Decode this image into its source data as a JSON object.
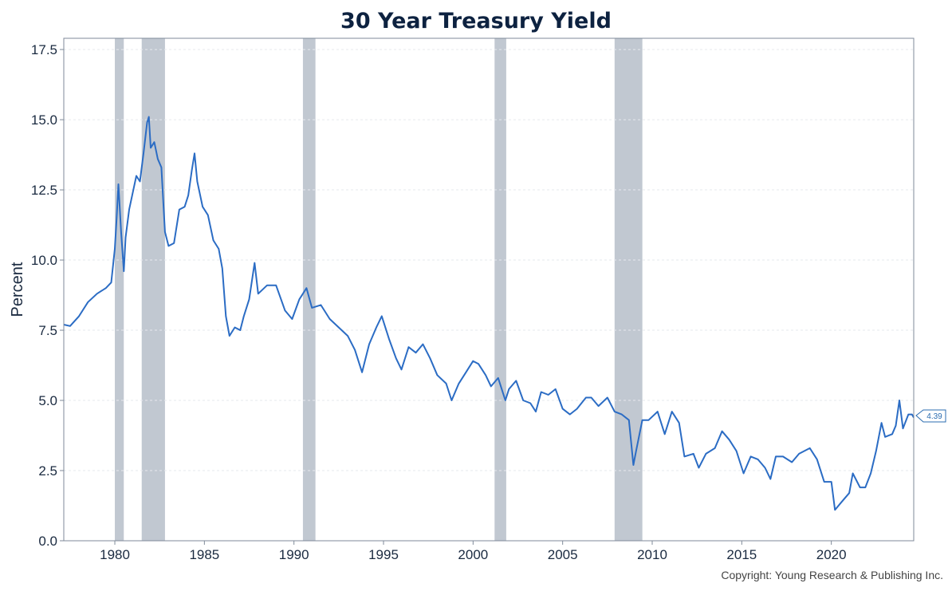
{
  "chart_data": {
    "type": "line",
    "title": "30 Year Treasury Yield",
    "ylabel": "Percent",
    "xlabel": "",
    "xlim": [
      1977.15,
      2024.6
    ],
    "ylim": [
      0,
      17.9
    ],
    "x_ticks": [
      "1980",
      "1985",
      "1990",
      "1995",
      "2000",
      "2005",
      "2010",
      "2015",
      "2020"
    ],
    "y_ticks": [
      "0.0",
      "2.5",
      "5.0",
      "7.5",
      "10.0",
      "12.5",
      "15.0",
      "17.5"
    ],
    "grid": true,
    "recessions": [
      [
        1980.0,
        1980.5
      ],
      [
        1981.5,
        1982.8
      ],
      [
        1990.5,
        1991.2
      ],
      [
        2001.2,
        2001.85
      ],
      [
        2007.9,
        2009.45
      ]
    ],
    "series": [
      {
        "color": "#2b6cc4",
        "points": [
          [
            1977.15,
            7.7
          ],
          [
            1977.5,
            7.65
          ],
          [
            1978.0,
            8.0
          ],
          [
            1978.5,
            8.5
          ],
          [
            1979.0,
            8.8
          ],
          [
            1979.5,
            9.0
          ],
          [
            1979.8,
            9.2
          ],
          [
            1980.0,
            10.4
          ],
          [
            1980.1,
            11.5
          ],
          [
            1980.2,
            12.7
          ],
          [
            1980.35,
            11.0
          ],
          [
            1980.5,
            9.6
          ],
          [
            1980.6,
            10.8
          ],
          [
            1980.8,
            11.8
          ],
          [
            1981.0,
            12.4
          ],
          [
            1981.2,
            13.0
          ],
          [
            1981.4,
            12.8
          ],
          [
            1981.6,
            13.8
          ],
          [
            1981.8,
            14.9
          ],
          [
            1981.9,
            15.1
          ],
          [
            1982.0,
            14.0
          ],
          [
            1982.2,
            14.2
          ],
          [
            1982.4,
            13.6
          ],
          [
            1982.6,
            13.3
          ],
          [
            1982.8,
            11.0
          ],
          [
            1983.0,
            10.5
          ],
          [
            1983.3,
            10.6
          ],
          [
            1983.6,
            11.8
          ],
          [
            1983.9,
            11.9
          ],
          [
            1984.1,
            12.3
          ],
          [
            1984.3,
            13.2
          ],
          [
            1984.45,
            13.8
          ],
          [
            1984.6,
            12.8
          ],
          [
            1984.9,
            11.9
          ],
          [
            1985.2,
            11.6
          ],
          [
            1985.5,
            10.7
          ],
          [
            1985.8,
            10.4
          ],
          [
            1986.0,
            9.7
          ],
          [
            1986.2,
            8.0
          ],
          [
            1986.4,
            7.3
          ],
          [
            1986.7,
            7.6
          ],
          [
            1987.0,
            7.5
          ],
          [
            1987.2,
            8.0
          ],
          [
            1987.5,
            8.6
          ],
          [
            1987.8,
            9.9
          ],
          [
            1988.0,
            8.8
          ],
          [
            1988.5,
            9.1
          ],
          [
            1989.0,
            9.1
          ],
          [
            1989.5,
            8.2
          ],
          [
            1989.9,
            7.9
          ],
          [
            1990.3,
            8.6
          ],
          [
            1990.7,
            9.0
          ],
          [
            1991.0,
            8.3
          ],
          [
            1991.5,
            8.4
          ],
          [
            1992.0,
            7.9
          ],
          [
            1992.5,
            7.6
          ],
          [
            1993.0,
            7.3
          ],
          [
            1993.4,
            6.8
          ],
          [
            1993.8,
            6.0
          ],
          [
            1994.2,
            7.0
          ],
          [
            1994.6,
            7.6
          ],
          [
            1994.9,
            8.0
          ],
          [
            1995.3,
            7.2
          ],
          [
            1995.7,
            6.5
          ],
          [
            1996.0,
            6.1
          ],
          [
            1996.4,
            6.9
          ],
          [
            1996.8,
            6.7
          ],
          [
            1997.2,
            7.0
          ],
          [
            1997.6,
            6.5
          ],
          [
            1998.0,
            5.9
          ],
          [
            1998.5,
            5.6
          ],
          [
            1998.8,
            5.0
          ],
          [
            1999.2,
            5.6
          ],
          [
            1999.6,
            6.0
          ],
          [
            2000.0,
            6.4
          ],
          [
            2000.3,
            6.3
          ],
          [
            2000.7,
            5.9
          ],
          [
            2001.0,
            5.5
          ],
          [
            2001.4,
            5.8
          ],
          [
            2001.8,
            5.0
          ],
          [
            2002.0,
            5.4
          ],
          [
            2002.4,
            5.7
          ],
          [
            2002.8,
            5.0
          ],
          [
            2003.2,
            4.9
          ],
          [
            2003.5,
            4.6
          ],
          [
            2003.8,
            5.3
          ],
          [
            2004.2,
            5.2
          ],
          [
            2004.6,
            5.4
          ],
          [
            2005.0,
            4.7
          ],
          [
            2005.4,
            4.5
          ],
          [
            2005.8,
            4.7
          ],
          [
            2006.3,
            5.1
          ],
          [
            2006.6,
            5.1
          ],
          [
            2007.0,
            4.8
          ],
          [
            2007.5,
            5.1
          ],
          [
            2007.9,
            4.6
          ],
          [
            2008.3,
            4.5
          ],
          [
            2008.7,
            4.3
          ],
          [
            2008.95,
            2.7
          ],
          [
            2009.1,
            3.2
          ],
          [
            2009.45,
            4.3
          ],
          [
            2009.8,
            4.3
          ],
          [
            2010.3,
            4.6
          ],
          [
            2010.7,
            3.8
          ],
          [
            2011.1,
            4.6
          ],
          [
            2011.5,
            4.2
          ],
          [
            2011.8,
            3.0
          ],
          [
            2012.3,
            3.1
          ],
          [
            2012.6,
            2.6
          ],
          [
            2013.0,
            3.1
          ],
          [
            2013.5,
            3.3
          ],
          [
            2013.9,
            3.9
          ],
          [
            2014.3,
            3.6
          ],
          [
            2014.7,
            3.2
          ],
          [
            2015.1,
            2.4
          ],
          [
            2015.5,
            3.0
          ],
          [
            2015.9,
            2.9
          ],
          [
            2016.3,
            2.6
          ],
          [
            2016.6,
            2.2
          ],
          [
            2016.9,
            3.0
          ],
          [
            2017.3,
            3.0
          ],
          [
            2017.8,
            2.8
          ],
          [
            2018.2,
            3.1
          ],
          [
            2018.8,
            3.3
          ],
          [
            2019.2,
            2.9
          ],
          [
            2019.6,
            2.1
          ],
          [
            2020.0,
            2.1
          ],
          [
            2020.2,
            1.1
          ],
          [
            2020.6,
            1.4
          ],
          [
            2021.0,
            1.7
          ],
          [
            2021.2,
            2.4
          ],
          [
            2021.6,
            1.9
          ],
          [
            2021.9,
            1.9
          ],
          [
            2022.2,
            2.4
          ],
          [
            2022.5,
            3.2
          ],
          [
            2022.8,
            4.2
          ],
          [
            2023.0,
            3.7
          ],
          [
            2023.4,
            3.8
          ],
          [
            2023.6,
            4.1
          ],
          [
            2023.8,
            5.0
          ],
          [
            2024.0,
            4.0
          ],
          [
            2024.3,
            4.5
          ],
          [
            2024.5,
            4.5
          ],
          [
            2024.6,
            4.39
          ]
        ]
      }
    ],
    "last_value_label": "4.39"
  },
  "footer": {
    "copyright": "Copyright: Young Research & Publishing Inc."
  }
}
